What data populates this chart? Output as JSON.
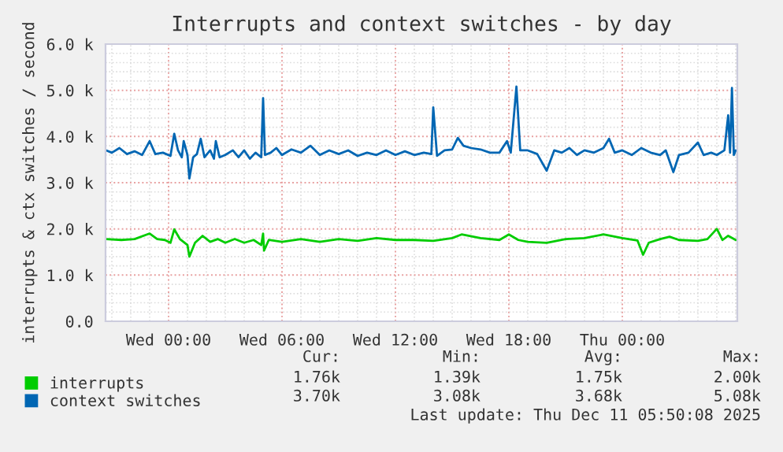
{
  "chart_data": {
    "type": "line",
    "title": "Interrupts and context switches - by day",
    "ylabel": "interrupts & ctx switches / second",
    "xlim": [
      "2025-12-09T20:40",
      "2025-12-11T06:05"
    ],
    "xticks": [
      {
        "value": "2025-12-10T00:00",
        "label": "Wed 00:00"
      },
      {
        "value": "2025-12-10T06:00",
        "label": "Wed 06:00"
      },
      {
        "value": "2025-12-10T12:00",
        "label": "Wed 12:00"
      },
      {
        "value": "2025-12-10T18:00",
        "label": "Wed 18:00"
      },
      {
        "value": "2025-12-11T00:00",
        "label": "Thu 00:00"
      }
    ],
    "ylim": [
      0,
      6000
    ],
    "yticks": [
      {
        "value": 0,
        "label": "0.0"
      },
      {
        "value": 1000,
        "label": "1.0 k"
      },
      {
        "value": 2000,
        "label": "2.0 k"
      },
      {
        "value": 3000,
        "label": "3.0 k"
      },
      {
        "value": 4000,
        "label": "4.0 k"
      },
      {
        "value": 5000,
        "label": "5.0 k"
      },
      {
        "value": 6000,
        "label": "6.0 k"
      }
    ],
    "grid": true,
    "legend": "bottom",
    "marker": "none",
    "line_style": "solid",
    "series": [
      {
        "name": "interrupts",
        "color": "#00cc00",
        "x": [
          "2025-12-09T20:42",
          "2025-12-09T21:30",
          "2025-12-09T22:12",
          "2025-12-09T23:00",
          "2025-12-09T23:24",
          "2025-12-09T23:48",
          "2025-12-10T00:06",
          "2025-12-10T00:18",
          "2025-12-10T00:36",
          "2025-12-10T01:00",
          "2025-12-10T01:06",
          "2025-12-10T01:24",
          "2025-12-10T01:48",
          "2025-12-10T02:12",
          "2025-12-10T02:36",
          "2025-12-10T03:00",
          "2025-12-10T03:30",
          "2025-12-10T04:00",
          "2025-12-10T04:30",
          "2025-12-10T04:54",
          "2025-12-10T05:00",
          "2025-12-10T05:03",
          "2025-12-10T05:18",
          "2025-12-10T06:00",
          "2025-12-10T07:00",
          "2025-12-10T08:00",
          "2025-12-10T09:00",
          "2025-12-10T10:00",
          "2025-12-10T11:00",
          "2025-12-10T12:00",
          "2025-12-10T13:00",
          "2025-12-10T14:00",
          "2025-12-10T15:00",
          "2025-12-10T15:30",
          "2025-12-10T16:30",
          "2025-12-10T17:30",
          "2025-12-10T18:00",
          "2025-12-10T18:30",
          "2025-12-10T19:00",
          "2025-12-10T20:00",
          "2025-12-10T21:00",
          "2025-12-10T22:00",
          "2025-12-10T23:00",
          "2025-12-11T00:00",
          "2025-12-11T00:48",
          "2025-12-11T01:06",
          "2025-12-11T01:24",
          "2025-12-11T02:00",
          "2025-12-11T02:30",
          "2025-12-11T03:00",
          "2025-12-11T04:00",
          "2025-12-11T04:30",
          "2025-12-11T05:00",
          "2025-12-11T05:18",
          "2025-12-11T05:36",
          "2025-12-11T06:00"
        ],
        "values": [
          1780,
          1760,
          1780,
          1900,
          1780,
          1760,
          1700,
          1990,
          1780,
          1650,
          1400,
          1700,
          1850,
          1720,
          1780,
          1700,
          1780,
          1700,
          1760,
          1650,
          1900,
          1530,
          1760,
          1720,
          1780,
          1720,
          1780,
          1740,
          1800,
          1760,
          1760,
          1740,
          1800,
          1880,
          1800,
          1760,
          1880,
          1760,
          1720,
          1700,
          1780,
          1800,
          1880,
          1800,
          1750,
          1440,
          1700,
          1780,
          1830,
          1760,
          1740,
          1780,
          2000,
          1760,
          1850,
          1760
        ]
      },
      {
        "name": "context switches",
        "color": "#0066b3",
        "x": [
          "2025-12-09T20:42",
          "2025-12-09T21:00",
          "2025-12-09T21:24",
          "2025-12-09T21:48",
          "2025-12-09T22:12",
          "2025-12-09T22:36",
          "2025-12-09T23:00",
          "2025-12-09T23:18",
          "2025-12-09T23:42",
          "2025-12-10T00:06",
          "2025-12-10T00:18",
          "2025-12-10T00:30",
          "2025-12-10T00:42",
          "2025-12-10T00:48",
          "2025-12-10T01:00",
          "2025-12-10T01:06",
          "2025-12-10T01:18",
          "2025-12-10T01:30",
          "2025-12-10T01:42",
          "2025-12-10T01:54",
          "2025-12-10T02:12",
          "2025-12-10T02:24",
          "2025-12-10T02:30",
          "2025-12-10T02:42",
          "2025-12-10T03:00",
          "2025-12-10T03:24",
          "2025-12-10T03:42",
          "2025-12-10T04:00",
          "2025-12-10T04:18",
          "2025-12-10T04:36",
          "2025-12-10T04:54",
          "2025-12-10T05:00",
          "2025-12-10T05:06",
          "2025-12-10T05:24",
          "2025-12-10T05:42",
          "2025-12-10T06:00",
          "2025-12-10T06:30",
          "2025-12-10T07:00",
          "2025-12-10T07:30",
          "2025-12-10T08:00",
          "2025-12-10T08:30",
          "2025-12-10T09:00",
          "2025-12-10T09:30",
          "2025-12-10T10:00",
          "2025-12-10T10:30",
          "2025-12-10T11:00",
          "2025-12-10T11:30",
          "2025-12-10T12:00",
          "2025-12-10T12:30",
          "2025-12-10T13:00",
          "2025-12-10T13:30",
          "2025-12-10T13:54",
          "2025-12-10T14:00",
          "2025-12-10T14:12",
          "2025-12-10T14:36",
          "2025-12-10T15:00",
          "2025-12-10T15:18",
          "2025-12-10T15:36",
          "2025-12-10T16:00",
          "2025-12-10T16:30",
          "2025-12-10T17:00",
          "2025-12-10T17:30",
          "2025-12-10T17:54",
          "2025-12-10T18:06",
          "2025-12-10T18:24",
          "2025-12-10T18:36",
          "2025-12-10T19:00",
          "2025-12-10T19:30",
          "2025-12-10T20:00",
          "2025-12-10T20:24",
          "2025-12-10T20:48",
          "2025-12-10T21:12",
          "2025-12-10T21:36",
          "2025-12-10T22:00",
          "2025-12-10T22:30",
          "2025-12-10T23:00",
          "2025-12-10T23:18",
          "2025-12-10T23:36",
          "2025-12-11T00:00",
          "2025-12-11T00:30",
          "2025-12-11T01:00",
          "2025-12-11T01:30",
          "2025-12-11T02:00",
          "2025-12-11T02:18",
          "2025-12-11T02:42",
          "2025-12-11T03:00",
          "2025-12-11T03:30",
          "2025-12-11T04:00",
          "2025-12-11T04:18",
          "2025-12-11T04:42",
          "2025-12-11T05:00",
          "2025-12-11T05:24",
          "2025-12-11T05:36",
          "2025-12-11T05:42",
          "2025-12-11T05:48",
          "2025-12-11T05:54",
          "2025-12-11T06:00"
        ],
        "values": [
          3700,
          3650,
          3750,
          3620,
          3680,
          3600,
          3900,
          3620,
          3650,
          3580,
          4060,
          3700,
          3550,
          3900,
          3600,
          3090,
          3550,
          3620,
          3950,
          3550,
          3700,
          3520,
          3900,
          3550,
          3600,
          3700,
          3550,
          3700,
          3520,
          3650,
          3550,
          4830,
          3600,
          3650,
          3750,
          3600,
          3720,
          3650,
          3800,
          3600,
          3700,
          3620,
          3700,
          3580,
          3650,
          3600,
          3700,
          3600,
          3680,
          3600,
          3650,
          3620,
          4630,
          3580,
          3700,
          3720,
          3970,
          3800,
          3750,
          3720,
          3650,
          3650,
          3900,
          3650,
          5080,
          3700,
          3700,
          3620,
          3260,
          3700,
          3650,
          3750,
          3600,
          3700,
          3650,
          3750,
          3950,
          3650,
          3700,
          3600,
          3750,
          3650,
          3600,
          3700,
          3230,
          3600,
          3650,
          3870,
          3600,
          3650,
          3600,
          3700,
          4460,
          3650,
          5050,
          3600,
          3700
        ]
      }
    ],
    "annotations": [
      "Cur:",
      "Min:",
      "Avg:",
      "Max:",
      "1.76k",
      "1.39k",
      "1.75k",
      "2.00k",
      "3.70k",
      "3.08k",
      "3.68k",
      "5.08k",
      "Last update: Thu Dec 11 05:50:08 2025"
    ]
  }
}
